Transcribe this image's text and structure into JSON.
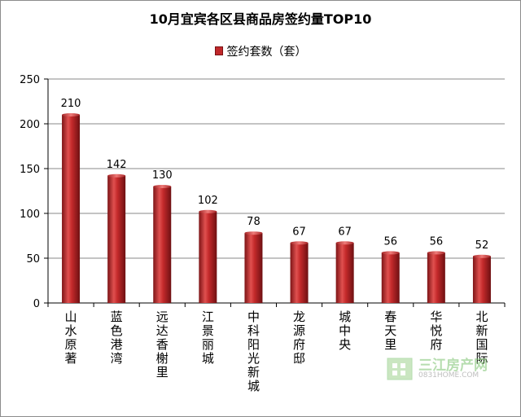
{
  "chart_data": {
    "type": "bar",
    "title": "10月宜宾各区县商品房签约量TOP10",
    "categories": [
      "山水原著",
      "蓝色港湾",
      "远达香榭里",
      "江景丽城",
      "中科阳光新城",
      "龙源府邸",
      "城中央",
      "春天里",
      "华悦府",
      "北新国际"
    ],
    "series": [
      {
        "name": "签约套数（套）",
        "values": [
          210,
          142,
          130,
          102,
          78,
          67,
          67,
          56,
          56,
          52
        ]
      }
    ],
    "xlabel": "",
    "ylabel": "",
    "ylim": [
      0,
      250
    ],
    "yticks": [
      0,
      50,
      100,
      150,
      200,
      250
    ],
    "grid": true,
    "legend_position": "top",
    "bar_color": "#c0282a"
  },
  "watermark": {
    "text": "三江房产网",
    "subtext": "0831HOME.COM"
  }
}
